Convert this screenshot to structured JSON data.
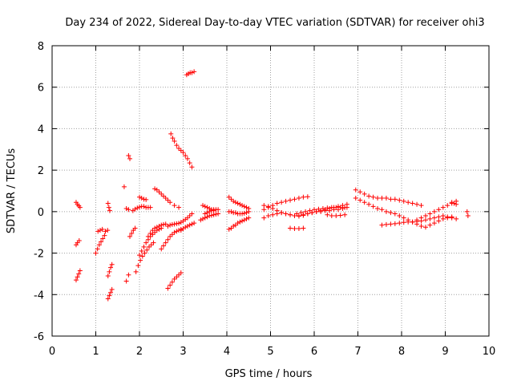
{
  "chart_data": {
    "type": "scatter",
    "title": "Day 234 of 2022, Sidereal Day-to-day VTEC variation (SDTVAR) for receiver ohi3",
    "xlabel": "GPS time / hours",
    "ylabel": "SDTVAR / TECUs",
    "xlim": [
      0,
      10
    ],
    "ylim": [
      -6,
      8
    ],
    "xticks": [
      "0",
      "1",
      "2",
      "3",
      "4",
      "5",
      "6",
      "7",
      "8",
      "9",
      "10"
    ],
    "yticks": [
      "-6",
      "-4",
      "-2",
      "0",
      "2",
      "4",
      "6",
      "8"
    ],
    "grid": true,
    "marker": "+",
    "color": "#ff0000",
    "series": [
      {
        "x": [
          0.55,
          0.58,
          0.61,
          0.64
        ],
        "y": [
          0.45,
          0.35,
          0.28,
          0.2
        ]
      },
      {
        "x": [
          0.55,
          0.58,
          0.62
        ],
        "y": [
          -1.6,
          -1.5,
          -1.4
        ]
      },
      {
        "x": [
          0.55,
          0.58,
          0.61,
          0.64
        ],
        "y": [
          -3.3,
          -3.15,
          -3.0,
          -2.85
        ]
      },
      {
        "x": [
          1.0,
          1.04,
          1.08,
          1.12,
          1.16,
          1.2
        ],
        "y": [
          -2.0,
          -1.8,
          -1.6,
          -1.45,
          -1.3,
          -1.15
        ]
      },
      {
        "x": [
          1.05,
          1.1,
          1.15
        ],
        "y": [
          -0.95,
          -0.9,
          -0.85
        ]
      },
      {
        "x": [
          1.22,
          1.27
        ],
        "y": [
          -0.95,
          -0.9
        ]
      },
      {
        "x": [
          1.28,
          1.3,
          1.32
        ],
        "y": [
          0.4,
          0.2,
          0.05
        ]
      },
      {
        "x": [
          1.28,
          1.31,
          1.34,
          1.37
        ],
        "y": [
          -4.2,
          -4.05,
          -3.9,
          -3.75
        ]
      },
      {
        "x": [
          1.28,
          1.31,
          1.34,
          1.37
        ],
        "y": [
          -3.1,
          -2.9,
          -2.7,
          -2.55
        ]
      },
      {
        "x": [
          1.65,
          1.7,
          1.75
        ],
        "y": [
          1.2,
          0.15,
          0.1
        ]
      },
      {
        "x": [
          1.7,
          1.75
        ],
        "y": [
          -3.35,
          -3.05
        ]
      },
      {
        "x": [
          1.78,
          1.82,
          1.86,
          1.9
        ],
        "y": [
          -1.2,
          -1.05,
          -0.9,
          -0.8
        ]
      },
      {
        "x": [
          1.75,
          1.78
        ],
        "y": [
          2.7,
          2.55
        ]
      },
      {
        "x": [
          1.85,
          1.9,
          1.95,
          2.0,
          2.05,
          2.1,
          2.15,
          2.2,
          2.25
        ],
        "y": [
          0.05,
          0.12,
          0.18,
          0.22,
          0.25,
          0.25,
          0.2,
          0.2,
          0.2
        ]
      },
      {
        "x": [
          2.0,
          2.05,
          2.1,
          2.15
        ],
        "y": [
          0.7,
          0.65,
          0.6,
          0.58
        ]
      },
      {
        "x": [
          1.92,
          1.97,
          2.02,
          2.07,
          2.12,
          2.17,
          2.22,
          2.27,
          2.32
        ],
        "y": [
          -2.9,
          -2.6,
          -2.35,
          -2.15,
          -2.0,
          -1.85,
          -1.7,
          -1.6,
          -1.5
        ]
      },
      {
        "x": [
          2.0,
          2.05,
          2.1,
          2.15,
          2.2,
          2.25,
          2.3,
          2.35,
          2.4,
          2.45,
          2.5
        ],
        "y": [
          -2.1,
          -1.9,
          -1.7,
          -1.5,
          -1.35,
          -1.2,
          -1.1,
          -1.0,
          -0.9,
          -0.85,
          -0.8
        ]
      },
      {
        "x": [
          2.2,
          2.25,
          2.3,
          2.35,
          2.4,
          2.45,
          2.5,
          2.55,
          2.6
        ],
        "y": [
          -1.2,
          -1.05,
          -0.9,
          -0.8,
          -0.75,
          -0.7,
          -0.65,
          -0.62,
          -0.6
        ]
      },
      {
        "x": [
          2.35,
          2.4,
          2.45,
          2.5,
          2.55,
          2.6,
          2.65,
          2.7,
          2.8,
          2.9
        ],
        "y": [
          1.1,
          1.05,
          0.95,
          0.85,
          0.75,
          0.65,
          0.55,
          0.45,
          0.3,
          0.2
        ]
      },
      {
        "x": [
          2.5,
          2.55,
          2.6,
          2.65,
          2.7,
          2.75,
          2.8,
          2.85,
          2.9,
          2.95
        ],
        "y": [
          -1.8,
          -1.65,
          -1.5,
          -1.35,
          -1.2,
          -1.1,
          -1.0,
          -0.95,
          -0.9,
          -0.85
        ]
      },
      {
        "x": [
          2.65,
          2.7,
          2.75,
          2.8,
          2.85,
          2.9,
          2.95,
          3.0,
          3.05,
          3.1,
          3.15,
          3.2
        ],
        "y": [
          -0.7,
          -0.65,
          -0.62,
          -0.6,
          -0.58,
          -0.56,
          -0.52,
          -0.45,
          -0.38,
          -0.3,
          -0.2,
          -0.1
        ]
      },
      {
        "x": [
          2.65,
          2.7,
          2.75,
          2.8,
          2.85,
          2.9,
          2.95
        ],
        "y": [
          -3.7,
          -3.55,
          -3.4,
          -3.25,
          -3.15,
          -3.05,
          -2.95
        ]
      },
      {
        "x": [
          2.72,
          2.76,
          2.8,
          2.85,
          2.9,
          2.95,
          3.0,
          3.05,
          3.1,
          3.15,
          3.2
        ],
        "y": [
          3.75,
          3.55,
          3.4,
          3.2,
          3.05,
          2.95,
          2.85,
          2.7,
          2.55,
          2.35,
          2.15
        ]
      },
      {
        "x": [
          3.08,
          3.12,
          3.16,
          3.2,
          3.25
        ],
        "y": [
          6.6,
          6.65,
          6.7,
          6.7,
          6.75
        ]
      },
      {
        "x": [
          2.95,
          3.0,
          3.05,
          3.1,
          3.15,
          3.2,
          3.25
        ],
        "y": [
          -0.9,
          -0.82,
          -0.75,
          -0.7,
          -0.65,
          -0.6,
          -0.55
        ]
      },
      {
        "x": [
          3.4,
          3.45,
          3.5,
          3.55,
          3.6,
          3.65,
          3.7,
          3.75,
          3.8
        ],
        "y": [
          -0.4,
          -0.35,
          -0.3,
          -0.25,
          -0.2,
          -0.18,
          -0.15,
          -0.12,
          -0.1
        ]
      },
      {
        "x": [
          3.45,
          3.5,
          3.55,
          3.6,
          3.65,
          3.7
        ],
        "y": [
          0.3,
          0.25,
          0.2,
          0.15,
          0.1,
          0.05
        ]
      },
      {
        "x": [
          3.5,
          3.55,
          3.6,
          3.65,
          3.7,
          3.75,
          3.8
        ],
        "y": [
          -0.1,
          -0.05,
          0.0,
          0.05,
          0.1,
          0.1,
          0.1
        ]
      },
      {
        "x": [
          4.05,
          4.1,
          4.15,
          4.2,
          4.25,
          4.3,
          4.35,
          4.4,
          4.45,
          4.5
        ],
        "y": [
          0.7,
          0.6,
          0.5,
          0.45,
          0.4,
          0.35,
          0.3,
          0.25,
          0.2,
          0.15
        ]
      },
      {
        "x": [
          4.05,
          4.1,
          4.15,
          4.2,
          4.25,
          4.3,
          4.35,
          4.4,
          4.45,
          4.5
        ],
        "y": [
          -0.85,
          -0.8,
          -0.7,
          -0.65,
          -0.55,
          -0.5,
          -0.45,
          -0.4,
          -0.35,
          -0.3
        ]
      },
      {
        "x": [
          4.05,
          4.1,
          4.15,
          4.2,
          4.25,
          4.3,
          4.35,
          4.4,
          4.45,
          4.5
        ],
        "y": [
          0.0,
          0.0,
          -0.05,
          -0.05,
          -0.1,
          -0.1,
          -0.1,
          -0.08,
          -0.05,
          0.0
        ]
      },
      {
        "x": [
          4.85,
          4.95,
          5.05,
          5.15,
          5.25,
          5.35,
          5.45,
          5.55,
          5.65,
          5.75,
          5.85
        ],
        "y": [
          0.1,
          0.2,
          0.3,
          0.4,
          0.45,
          0.5,
          0.55,
          0.6,
          0.65,
          0.7,
          0.72
        ]
      },
      {
        "x": [
          4.85,
          4.95,
          5.05,
          5.15,
          5.25,
          5.35,
          5.45,
          5.55,
          5.65,
          5.75,
          5.85,
          5.95,
          6.05,
          6.15,
          6.25,
          6.35,
          6.45,
          6.55,
          6.65,
          6.75
        ],
        "y": [
          -0.3,
          -0.2,
          -0.15,
          -0.1,
          -0.05,
          -0.1,
          -0.15,
          -0.2,
          -0.22,
          -0.18,
          -0.1,
          -0.05,
          0.0,
          0.05,
          0.1,
          0.15,
          0.2,
          0.25,
          0.3,
          0.35
        ]
      },
      {
        "x": [
          4.85,
          4.95,
          5.05,
          5.15,
          5.25,
          5.35,
          5.45,
          5.55,
          5.65,
          5.75,
          5.85,
          5.95,
          6.05,
          6.15,
          6.25,
          6.35,
          6.45,
          6.55,
          6.65,
          6.75
        ],
        "y": [
          0.3,
          0.25,
          0.15,
          0.05,
          -0.05,
          -0.1,
          -0.15,
          -0.2,
          -0.2,
          -0.15,
          -0.1,
          -0.05,
          0.0,
          0.0,
          0.05,
          0.05,
          0.1,
          0.1,
          0.15,
          0.2
        ]
      },
      {
        "x": [
          5.45,
          5.55,
          5.65,
          5.75
        ],
        "y": [
          -0.8,
          -0.82,
          -0.82,
          -0.8
        ]
      },
      {
        "x": [
          5.6,
          5.7,
          5.8,
          5.9,
          6.0,
          6.1,
          6.2,
          6.3,
          6.4,
          6.5,
          6.6,
          6.7
        ],
        "y": [
          -0.1,
          -0.05,
          0.0,
          0.05,
          0.1,
          0.12,
          0.15,
          0.18,
          0.2,
          0.2,
          0.2,
          0.2
        ]
      },
      {
        "x": [
          6.3,
          6.4,
          6.5,
          6.6,
          6.7
        ],
        "y": [
          -0.15,
          -0.2,
          -0.2,
          -0.18,
          -0.15
        ]
      },
      {
        "x": [
          6.95,
          7.05,
          7.15,
          7.25,
          7.35,
          7.45,
          7.55,
          7.65,
          7.75,
          7.85,
          7.95,
          8.05,
          8.15,
          8.25,
          8.35,
          8.45
        ],
        "y": [
          1.05,
          0.95,
          0.85,
          0.75,
          0.7,
          0.65,
          0.65,
          0.65,
          0.6,
          0.6,
          0.55,
          0.5,
          0.45,
          0.4,
          0.35,
          0.3
        ]
      },
      {
        "x": [
          6.95,
          7.05,
          7.15,
          7.25,
          7.35,
          7.45,
          7.55,
          7.65,
          7.75,
          7.85,
          7.95,
          8.05,
          8.15,
          8.25,
          8.35,
          8.45,
          8.55,
          8.65,
          8.75,
          8.85,
          8.95,
          9.05,
          9.15
        ],
        "y": [
          0.65,
          0.55,
          0.45,
          0.35,
          0.25,
          0.15,
          0.1,
          0.0,
          -0.05,
          -0.1,
          -0.2,
          -0.3,
          -0.4,
          -0.5,
          -0.6,
          -0.7,
          -0.75,
          -0.65,
          -0.55,
          -0.45,
          -0.35,
          -0.3,
          -0.25
        ]
      },
      {
        "x": [
          7.55,
          7.65,
          7.75,
          7.85,
          7.95,
          8.05,
          8.15,
          8.25,
          8.35,
          8.45,
          8.55,
          8.65,
          8.75,
          8.85,
          8.95,
          9.05,
          9.15,
          9.25
        ],
        "y": [
          -0.65,
          -0.62,
          -0.6,
          -0.58,
          -0.55,
          -0.52,
          -0.5,
          -0.5,
          -0.48,
          -0.45,
          -0.4,
          -0.35,
          -0.3,
          -0.25,
          -0.2,
          -0.25,
          -0.3,
          -0.35
        ]
      },
      {
        "x": [
          8.35,
          8.45,
          8.55,
          8.65,
          8.75,
          8.85,
          8.95,
          9.05,
          9.15,
          9.25
        ],
        "y": [
          -0.4,
          -0.3,
          -0.2,
          -0.1,
          0.0,
          0.1,
          0.2,
          0.3,
          0.4,
          0.5
        ]
      },
      {
        "x": [
          9.15,
          9.2,
          9.25
        ],
        "y": [
          0.45,
          0.4,
          0.35
        ]
      },
      {
        "x": [
          9.5,
          9.52
        ],
        "y": [
          0.0,
          -0.2
        ]
      }
    ]
  }
}
